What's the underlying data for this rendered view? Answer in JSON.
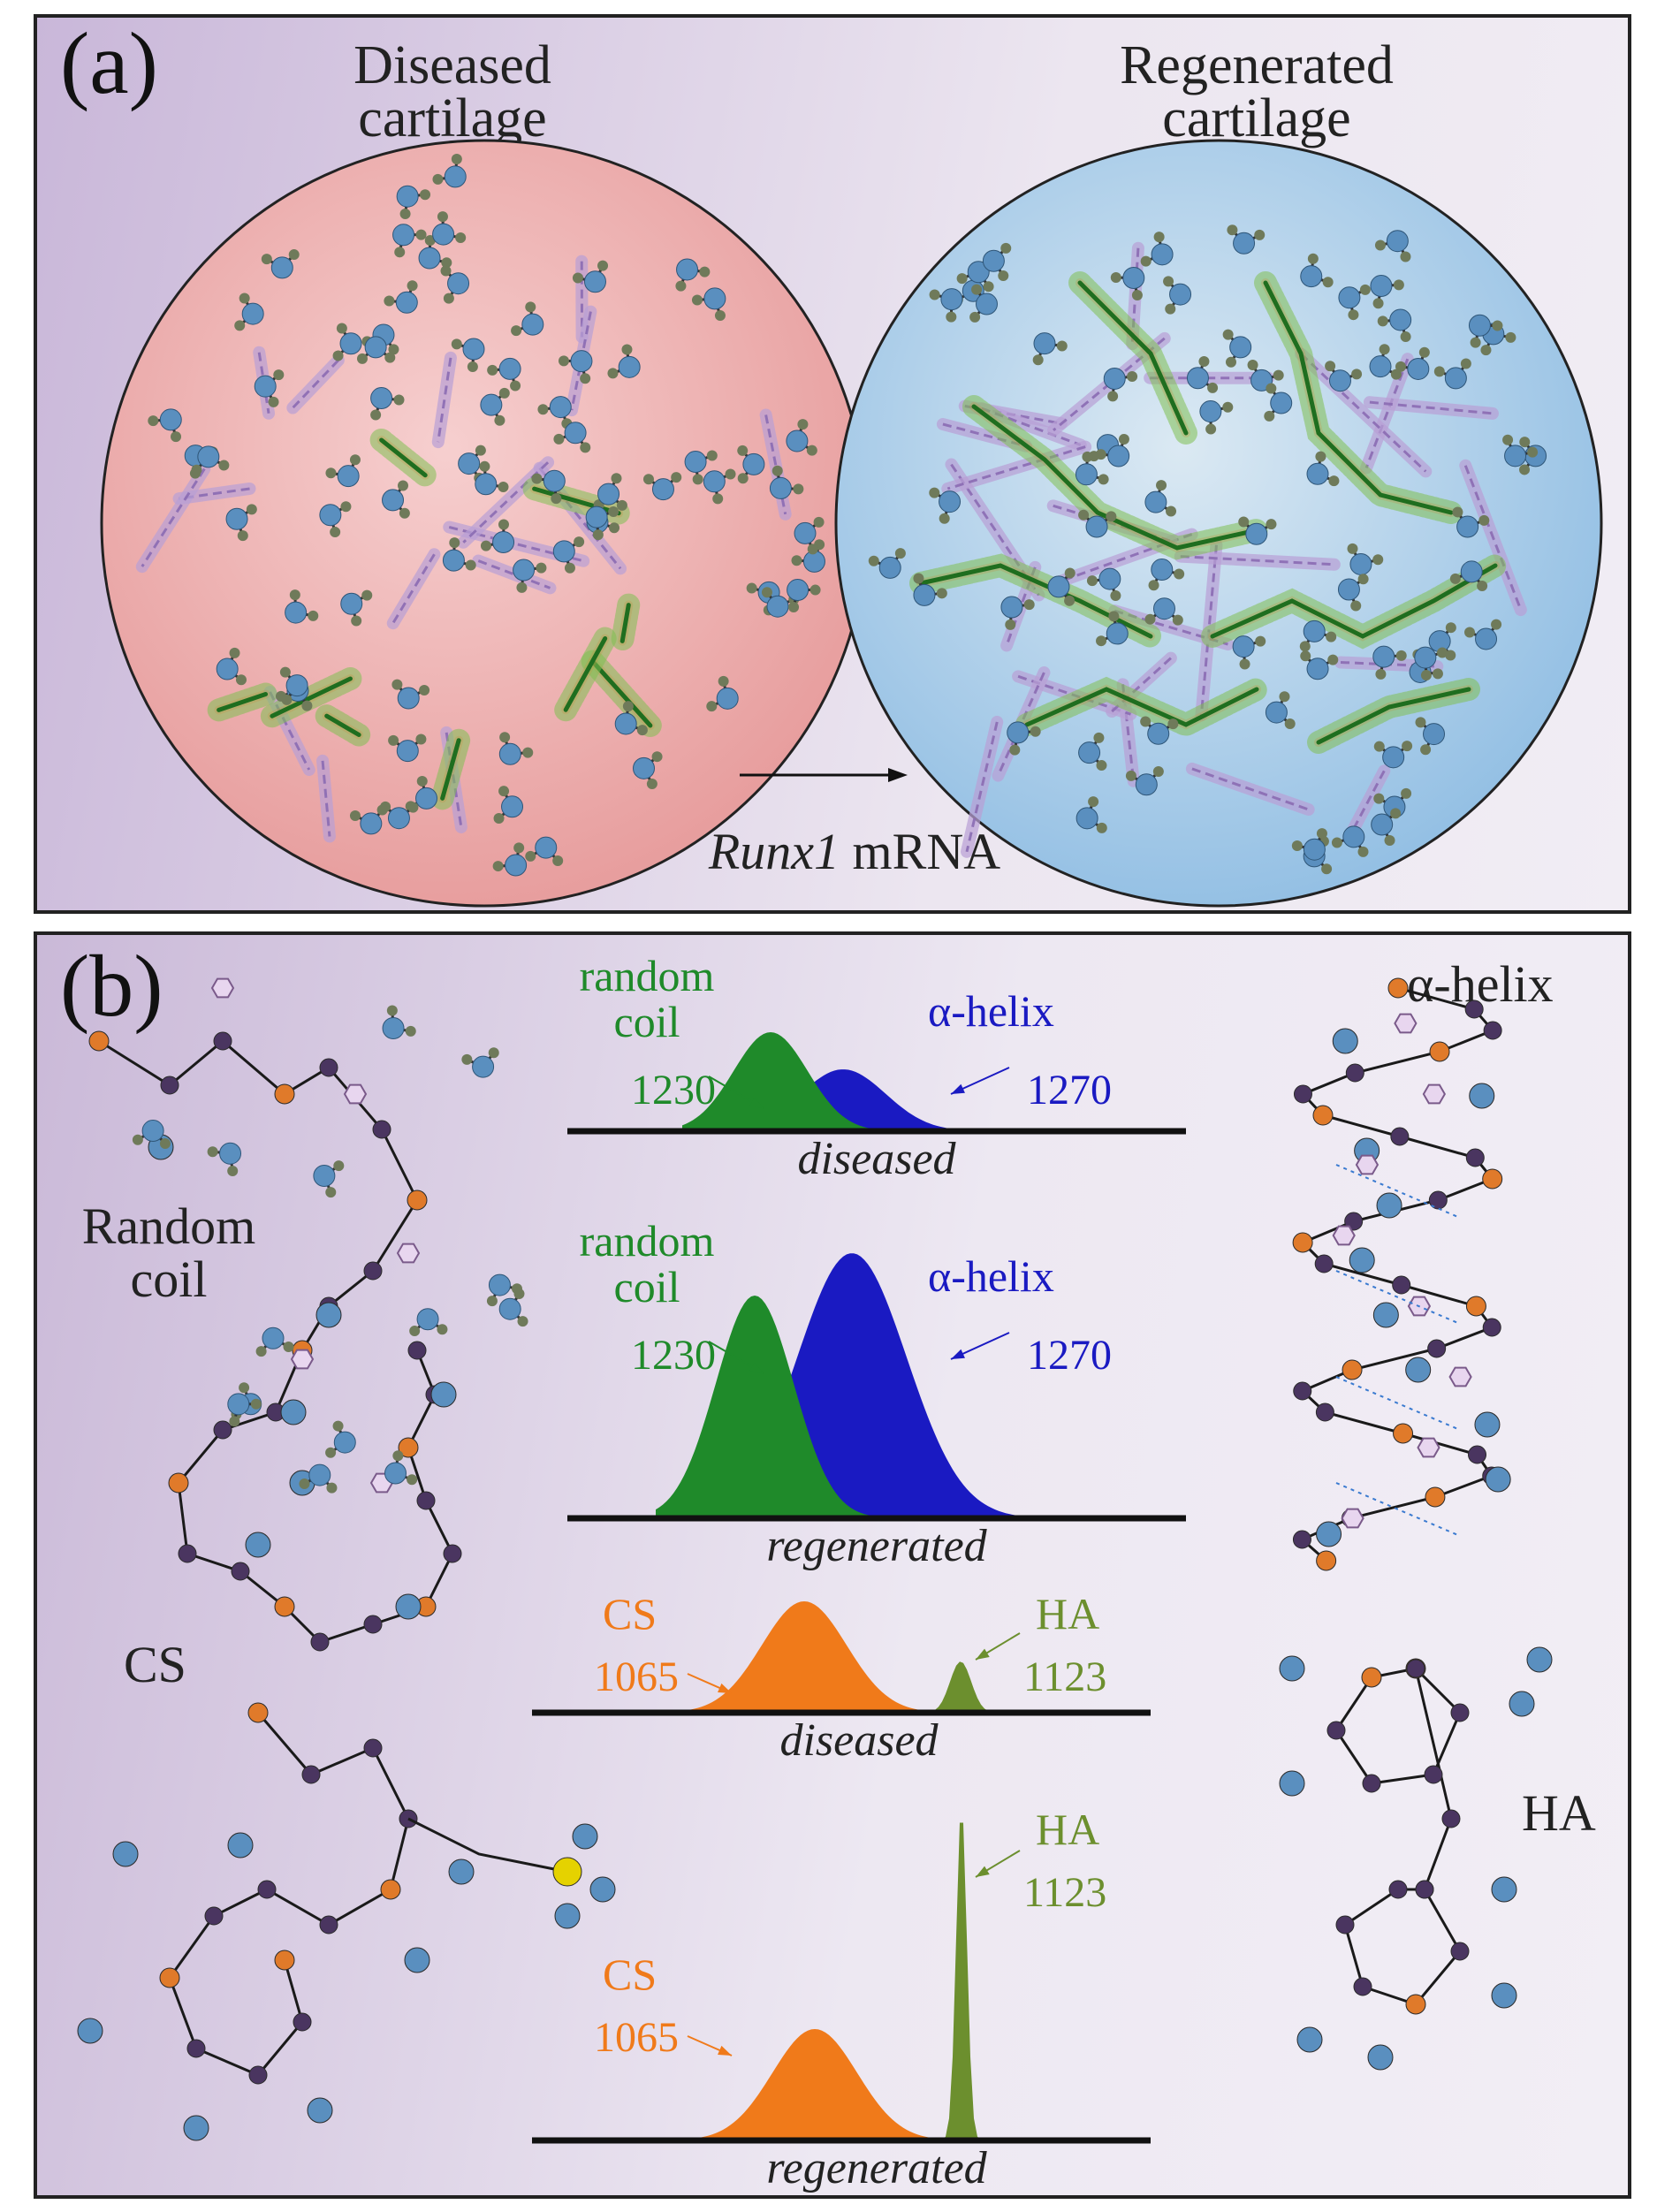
{
  "panel_a": {
    "label": "(a)",
    "left_title_line1": "Diseased",
    "left_title_line2": "cartilage",
    "right_title_line1": "Regenerated",
    "right_title_line2": "cartilage",
    "arrow_label_italic": "Runx1",
    "arrow_label_rest": " mRNA"
  },
  "panel_b": {
    "label": "(b)",
    "random_coil_line1": "Random",
    "random_coil_line2": "coil",
    "alpha_helix_title": "α-helix",
    "cs_label": "CS",
    "ha_label": "HA",
    "spectra": [
      {
        "condition": "diseased",
        "left_name_line1": "random",
        "left_name_line2": "coil",
        "left_wavenumber": "1230",
        "right_name": "α-helix",
        "right_wavenumber": "1270"
      },
      {
        "condition": "regenerated",
        "left_name_line1": "random",
        "left_name_line2": "coil",
        "left_wavenumber": "1230",
        "right_name": "α-helix",
        "right_wavenumber": "1270"
      },
      {
        "condition": "diseased",
        "left_name_line1": "CS",
        "left_name_line2": "",
        "left_wavenumber": "1065",
        "right_name": "HA",
        "right_wavenumber": "1123"
      },
      {
        "condition": "regenerated",
        "left_name_line1": "CS",
        "left_name_line2": "",
        "left_wavenumber": "1065",
        "right_name": "HA",
        "right_wavenumber": "1123"
      }
    ]
  },
  "colors": {
    "random_coil_green": "#1f8a2a",
    "alpha_helix_blue": "#1a1ac2",
    "cs_orange": "#f07a1a",
    "ha_olive": "#6c8f2e",
    "diseased_fill": "#eaaeae",
    "regenerated_fill": "#a9cde8",
    "collagen_purple": "#a98bc9",
    "water_blue": "#5a8fbf"
  }
}
